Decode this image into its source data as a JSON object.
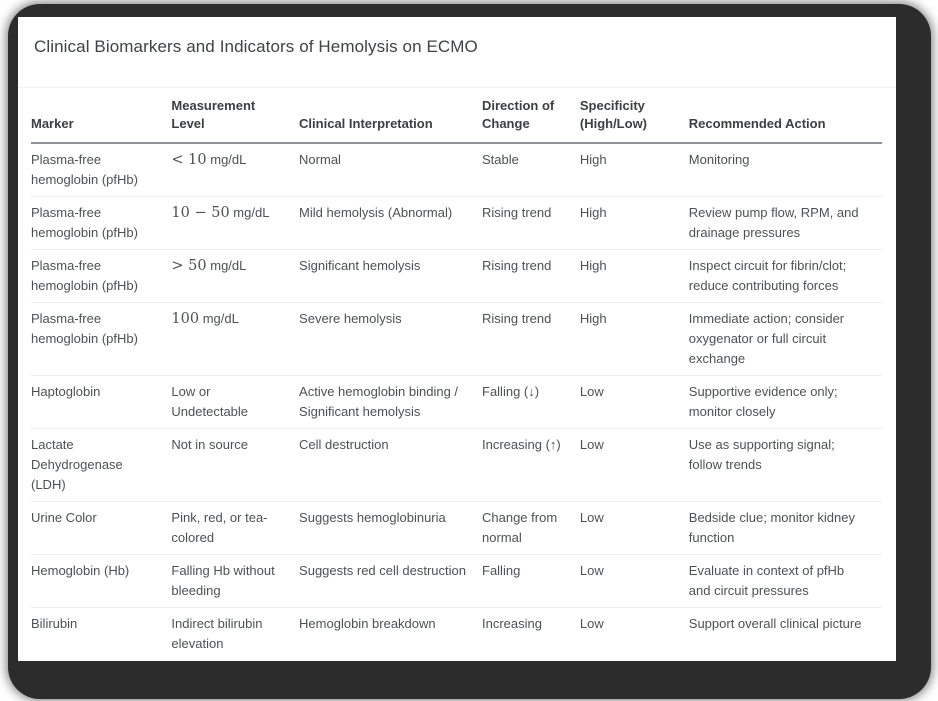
{
  "page": {
    "title": "Clinical Biomarkers and Indicators of Hemolysis on ECMO"
  },
  "table": {
    "columns": [
      "Marker",
      "Measurement Level",
      "Clinical Interpretation",
      "Direction of Change",
      "Specificity (High/Low)",
      "Recommended Action"
    ],
    "rows": [
      {
        "marker": "Plasma-free hemoglobin (pfHb)",
        "level_math": "< 10",
        "level_text": " mg/dL",
        "interpretation": "Normal",
        "direction": "Stable",
        "specificity": "High",
        "action": "Monitoring"
      },
      {
        "marker": "Plasma-free hemoglobin (pfHb)",
        "level_math": "10 − 50",
        "level_text": " mg/dL",
        "interpretation": "Mild hemolysis (Abnormal)",
        "direction": "Rising trend",
        "specificity": "High",
        "action": "Review pump flow, RPM, and drainage pressures"
      },
      {
        "marker": "Plasma-free hemoglobin (pfHb)",
        "level_math": "> 50",
        "level_text": " mg/dL",
        "interpretation": "Significant hemolysis",
        "direction": "Rising trend",
        "specificity": "High",
        "action": "Inspect circuit for fibrin/clot; reduce contributing forces"
      },
      {
        "marker": "Plasma-free hemoglobin (pfHb)",
        "level_math": "100",
        "level_text": " mg/dL",
        "interpretation": "Severe hemolysis",
        "direction": "Rising trend",
        "specificity": "High",
        "action": "Immediate action; consider oxygenator or full circuit exchange"
      },
      {
        "marker": "Haptoglobin",
        "level_math": "",
        "level_text": "Low or Undetectable",
        "interpretation": "Active hemoglobin binding / Significant hemolysis",
        "direction": "Falling (↓)",
        "specificity": "Low",
        "action": "Supportive evidence only; monitor closely"
      },
      {
        "marker": "Lactate Dehydrogenase (LDH)",
        "level_math": "",
        "level_text": "Not in source",
        "interpretation": "Cell destruction",
        "direction": "Increasing (↑)",
        "specificity": "Low",
        "action": "Use as supporting signal; follow trends"
      },
      {
        "marker": "Urine Color",
        "level_math": "",
        "level_text": "Pink, red, or tea-colored",
        "interpretation": "Suggests hemoglobinuria",
        "direction": "Change from normal",
        "specificity": "Low",
        "action": "Bedside clue; monitor kidney function"
      },
      {
        "marker": "Hemoglobin (Hb)",
        "level_math": "",
        "level_text": "Falling Hb without bleeding",
        "interpretation": "Suggests red cell destruction",
        "direction": "Falling",
        "specificity": "Low",
        "action": "Evaluate in context of pfHb and circuit pressures"
      },
      {
        "marker": "Bilirubin",
        "level_math": "",
        "level_text": "Indirect bilirubin elevation",
        "interpretation": "Hemoglobin breakdown",
        "direction": "Increasing",
        "specificity": "Low",
        "action": "Support overall clinical picture"
      }
    ]
  },
  "colors": {
    "frame": "#2c2c2c",
    "card_bg": "#ffffff",
    "title_text": "#3f4246",
    "header_text": "#3c4043",
    "body_text": "#4d5156",
    "header_rule": "#8d9094",
    "row_rule": "#eceef0",
    "title_rule": "#f1f2f3"
  }
}
